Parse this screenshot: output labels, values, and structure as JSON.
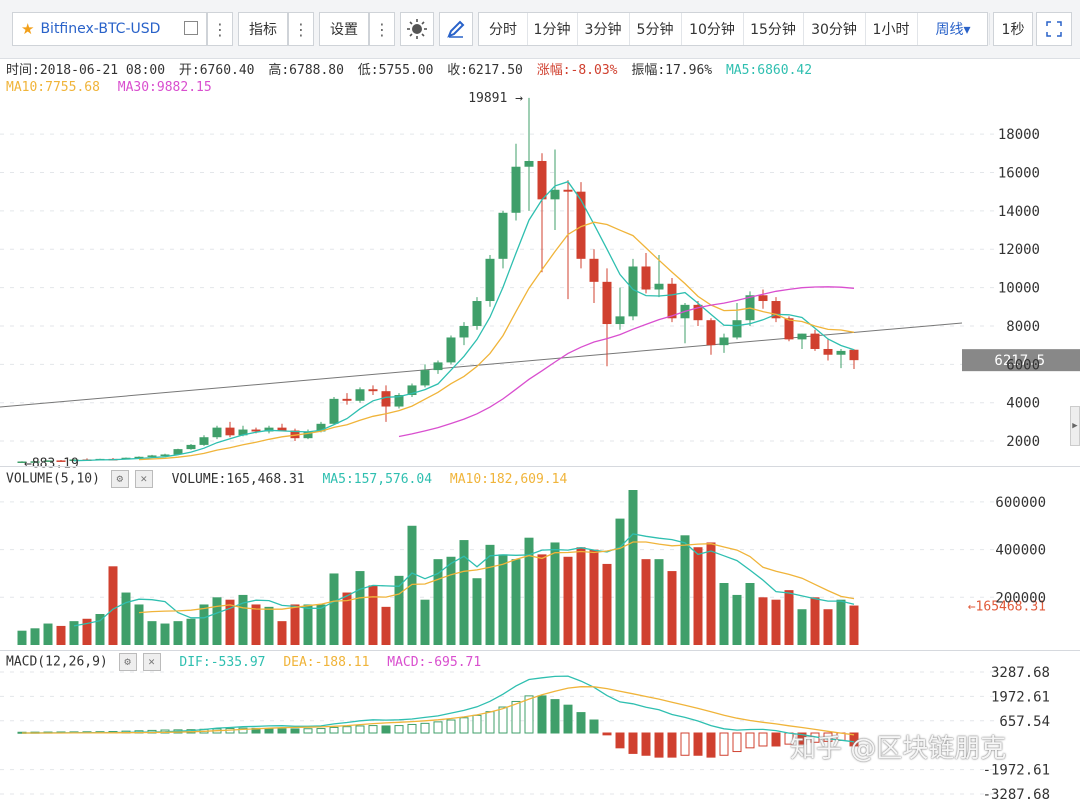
{
  "toolbar": {
    "symbol": "Bitfinex-BTC-USD",
    "indicators_label": "指标",
    "settings_label": "设置",
    "periods": [
      "分时",
      "1分钟",
      "3分钟",
      "5分钟",
      "10分钟",
      "15分钟",
      "30分钟",
      "1小时",
      "周线▾"
    ],
    "active_period": "周线▾",
    "second_label": "1秒"
  },
  "colors": {
    "up": "#3f9f6a",
    "down": "#d0402f",
    "ma5": "#2fbfb0",
    "ma10": "#f0b43a",
    "ma30": "#d94fcf",
    "accent": "#2962c9"
  },
  "info": {
    "time": "时间:2018-06-21 08:00",
    "open": "开:6760.40",
    "high": "高:6788.80",
    "low": "低:5755.00",
    "close": "收:6217.50",
    "change": "涨幅:-8.03%",
    "amplitude": "振幅:17.96%",
    "ma5": "MA5:6860.42",
    "ma10": "MA10:7755.68",
    "ma30": "MA30:9882.15"
  },
  "volume_header": {
    "name": "VOLUME(5,10)",
    "value": "VOLUME:165,468.31",
    "ma5": "MA5:157,576.04",
    "ma10": "MA10:182,609.14"
  },
  "macd_header": {
    "name": "MACD(12,26,9)",
    "dif": "DIF:-535.97",
    "dea": "DEA:-188.11",
    "macd": "MACD:-695.71"
  },
  "watermark": "知乎 @区块链朋克",
  "chart_data": [
    {
      "type": "candlestick",
      "title": "Bitfinex-BTC-USD weekly",
      "y_ticks": [
        "2000",
        "4000",
        "6000",
        "8000",
        "10000",
        "12000",
        "14000",
        "16000",
        "18000"
      ],
      "ylim": [
        700,
        20300
      ],
      "current_price": "6217.5",
      "max_label": "19891",
      "min_label": "883.19",
      "candles": [
        [
          900,
          950,
          880,
          935
        ],
        [
          935,
          960,
          910,
          945
        ],
        [
          945,
          1000,
          920,
          990
        ],
        [
          990,
          1010,
          950,
          975
        ],
        [
          975,
          1050,
          960,
          1040
        ],
        [
          1040,
          1100,
          1000,
          1010
        ],
        [
          1010,
          1080,
          990,
          1070
        ],
        [
          1070,
          1120,
          1040,
          1060
        ],
        [
          1060,
          1140,
          1050,
          1130
        ],
        [
          1130,
          1200,
          1100,
          1180
        ],
        [
          1180,
          1280,
          1150,
          1250
        ],
        [
          1250,
          1340,
          1200,
          1300
        ],
        [
          1300,
          1600,
          1280,
          1580
        ],
        [
          1580,
          1850,
          1550,
          1800
        ],
        [
          1800,
          2300,
          1750,
          2200
        ],
        [
          2200,
          2800,
          2100,
          2700
        ],
        [
          2700,
          3000,
          2200,
          2300
        ],
        [
          2300,
          2800,
          2250,
          2600
        ],
        [
          2600,
          2700,
          2400,
          2500
        ],
        [
          2500,
          2800,
          2400,
          2700
        ],
        [
          2700,
          2900,
          2500,
          2550
        ],
        [
          2550,
          2650,
          2000,
          2150
        ],
        [
          2150,
          2600,
          2100,
          2500
        ],
        [
          2500,
          3000,
          2450,
          2900
        ],
        [
          2900,
          4300,
          2850,
          4200
        ],
        [
          4200,
          4500,
          3900,
          4100
        ],
        [
          4100,
          4800,
          4000,
          4700
        ],
        [
          4700,
          4900,
          4400,
          4600
        ],
        [
          4600,
          4900,
          3000,
          3800
        ],
        [
          3800,
          4500,
          3700,
          4400
        ],
        [
          4400,
          5000,
          4300,
          4900
        ],
        [
          4900,
          6000,
          4800,
          5700
        ],
        [
          5700,
          6200,
          5500,
          6100
        ],
        [
          6100,
          7500,
          6000,
          7400
        ],
        [
          7400,
          8200,
          7000,
          8000
        ],
        [
          8000,
          9500,
          7800,
          9300
        ],
        [
          9300,
          11700,
          9000,
          11500
        ],
        [
          11500,
          14000,
          11000,
          13900
        ],
        [
          13900,
          17500,
          13500,
          16300
        ],
        [
          16300,
          19891,
          14000,
          16600
        ],
        [
          16600,
          17000,
          10800,
          14600
        ],
        [
          14600,
          17200,
          13000,
          15100
        ],
        [
          15100,
          15600,
          9400,
          15000
        ],
        [
          15000,
          15500,
          11000,
          11500
        ],
        [
          11500,
          12000,
          9200,
          10300
        ],
        [
          10300,
          11000,
          5900,
          8100
        ],
        [
          8100,
          10000,
          7800,
          8500
        ],
        [
          8500,
          11500,
          8300,
          11100
        ],
        [
          11100,
          11800,
          9700,
          9900
        ],
        [
          9900,
          11700,
          9500,
          10200
        ],
        [
          10200,
          10500,
          8200,
          8400
        ],
        [
          8400,
          9200,
          7100,
          9100
        ],
        [
          9100,
          9300,
          8000,
          8300
        ],
        [
          8300,
          8400,
          6500,
          7000
        ],
        [
          7000,
          7600,
          6600,
          7400
        ],
        [
          7400,
          9200,
          7300,
          8300
        ],
        [
          8300,
          9800,
          8000,
          9600
        ],
        [
          9600,
          9900,
          8900,
          9300
        ],
        [
          9300,
          9500,
          8200,
          8400
        ],
        [
          8400,
          8500,
          7200,
          7300
        ],
        [
          7300,
          7600,
          6800,
          7600
        ],
        [
          7600,
          7800,
          6700,
          6800
        ],
        [
          6800,
          7300,
          6200,
          6500
        ],
        [
          6500,
          6800,
          5800,
          6700
        ],
        [
          6760.4,
          6788.8,
          5755,
          6217.5
        ]
      ]
    },
    {
      "type": "bar",
      "title": "VOLUME(5,10)",
      "y_ticks": [
        "200000",
        "400000",
        "600000"
      ],
      "ylim": [
        0,
        650000
      ],
      "last_label": "←165468.31",
      "values": [
        60000,
        70000,
        90000,
        80000,
        100000,
        110000,
        130000,
        330000,
        220000,
        170000,
        100000,
        90000,
        100000,
        110000,
        170000,
        200000,
        190000,
        210000,
        170000,
        160000,
        100000,
        170000,
        170000,
        170000,
        300000,
        220000,
        310000,
        250000,
        160000,
        290000,
        500000,
        190000,
        360000,
        370000,
        440000,
        280000,
        420000,
        380000,
        360000,
        450000,
        380000,
        430000,
        370000,
        410000,
        400000,
        340000,
        530000,
        650000,
        360000,
        360000,
        310000,
        460000,
        410000,
        430000,
        260000,
        210000,
        260000,
        200000,
        190000,
        230000,
        150000,
        200000,
        150000,
        190000,
        165468.31
      ]
    },
    {
      "type": "bar",
      "title": "MACD(12,26,9)",
      "y_ticks": [
        "3287.68",
        "1972.61",
        "657.54",
        "-1972.61",
        "-3287.68"
      ],
      "ylim": [
        -3287.68,
        3287.68
      ],
      "histogram": [
        40,
        45,
        50,
        55,
        60,
        65,
        70,
        80,
        100,
        120,
        140,
        160,
        170,
        180,
        200,
        220,
        240,
        260,
        250,
        240,
        230,
        220,
        230,
        240,
        300,
        340,
        380,
        400,
        380,
        400,
        460,
        520,
        600,
        700,
        820,
        950,
        1150,
        1400,
        1700,
        2000,
        2000,
        1800,
        1500,
        1100,
        700,
        -100,
        -800,
        -1100,
        -1200,
        -1300,
        -1300,
        -1200,
        -1200,
        -1300,
        -1200,
        -1000,
        -800,
        -700,
        -700,
        -600,
        -600,
        -500,
        -450,
        -400,
        -695.71
      ]
    }
  ]
}
